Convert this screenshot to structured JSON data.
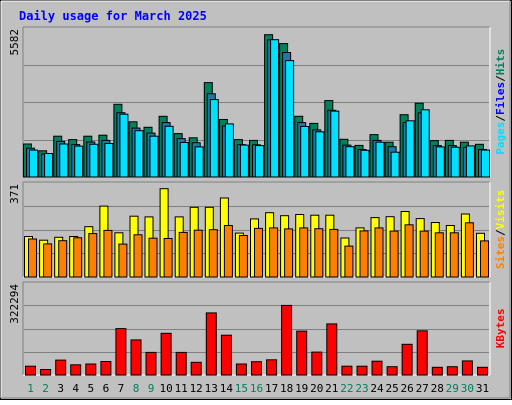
{
  "chart_data": {
    "type": "bar",
    "title": "Daily usage for March 2025",
    "colors": {
      "hits": "#00805c",
      "files": "#00e0ff",
      "pages": "#00e0ff",
      "visits": "#ffff00",
      "sites": "#ff8000",
      "kbytes": "#ff0000",
      "weekend_label": "#00805c",
      "title": "#0000ff"
    },
    "x": [
      1,
      2,
      3,
      4,
      5,
      6,
      7,
      8,
      9,
      10,
      11,
      12,
      13,
      14,
      15,
      16,
      17,
      18,
      19,
      20,
      21,
      22,
      23,
      24,
      25,
      26,
      27,
      28,
      29,
      30,
      31
    ],
    "weekend_days": [
      1,
      2,
      8,
      9,
      15,
      16,
      22,
      23,
      29,
      30
    ],
    "panels": [
      {
        "id": "hits-files-pages",
        "ymax_label": "5582",
        "ylim": [
          0,
          5582
        ],
        "legend": [
          "Pages",
          "/",
          "Files",
          "/",
          "Hits"
        ],
        "legend_colors": [
          "#00e0ff",
          "#000000",
          "#0000ff",
          "#000000",
          "#00805c"
        ],
        "series": [
          {
            "name": "Hits",
            "color": "#00805c",
            "values": [
              1260,
              1000,
              1560,
              1430,
              1560,
              1600,
              2780,
              2110,
              1900,
              2320,
              1660,
              1500,
              3610,
              2200,
              1430,
              1400,
              5440,
              5100,
              2320,
              2050,
              2920,
              1440,
              1210,
              1620,
              1330,
              2380,
              2820,
              1390,
              1400,
              1330,
              1250
            ]
          },
          {
            "name": "Files",
            "color": "#1c7aa6",
            "values": [
              1100,
              880,
              1360,
              1240,
              1340,
              1400,
              2460,
              1870,
              1680,
              2080,
              1470,
              1310,
              3180,
              1950,
              1240,
              1230,
              5240,
              4760,
              2080,
              1800,
              2550,
              1220,
              1050,
              1400,
              1160,
              2080,
              2450,
              1200,
              1200,
              1130,
              1050
            ]
          },
          {
            "name": "Pages",
            "color": "#00e0ff",
            "values": [
              1030,
              900,
              1260,
              1180,
              1250,
              1280,
              2400,
              1770,
              1560,
              1940,
              1320,
              1150,
              2960,
              2030,
              1220,
              1200,
              5250,
              4450,
              1930,
              1730,
              2520,
              1160,
              1020,
              1330,
              950,
              2150,
              2570,
              1150,
              1140,
              1190,
              1030
            ]
          }
        ]
      },
      {
        "id": "visits-sites",
        "ymax_label": "371",
        "ylim": [
          0,
          371
        ],
        "legend": [
          "Sites",
          "/",
          "Visits"
        ],
        "legend_colors": [
          "#ff8000",
          "#000000",
          "#ffff00"
        ],
        "series": [
          {
            "name": "Visits",
            "color": "#ffff00",
            "values": [
              165,
              150,
              162,
              165,
              205,
              289,
              180,
              248,
              245,
              360,
              245,
              284,
              284,
              322,
              179,
              237,
              262,
              250,
              255,
              252,
              252,
              159,
              200,
              242,
              246,
              267,
              238,
              222,
              210,
              257,
              178
            ]
          },
          {
            "name": "Sites",
            "color": "#ff8000",
            "values": [
              155,
              135,
              148,
              160,
              177,
              190,
              134,
              172,
              158,
              157,
              182,
              191,
              193,
              210,
              169,
              198,
              200,
              196,
              200,
              197,
              194,
              126,
              188,
              200,
              187,
              213,
              187,
              180,
              180,
              221,
              147
            ]
          }
        ]
      },
      {
        "id": "kbytes",
        "ymax_label": "322294",
        "ylim": [
          0,
          322294
        ],
        "legend": [
          "KBytes"
        ],
        "legend_colors": [
          "#ff0000"
        ],
        "series": [
          {
            "name": "KBytes",
            "color": "#ff0000",
            "values": [
              32000,
              20000,
              54000,
              37000,
              40000,
              49000,
              168000,
              127000,
              82000,
              151000,
              82000,
              46000,
              225000,
              144000,
              40000,
              48000,
              55000,
              252000,
              159000,
              83000,
              185000,
              32000,
              32000,
              50000,
              30000,
              111000,
              160000,
              28000,
              30000,
              51000,
              28000
            ]
          }
        ]
      }
    ]
  }
}
